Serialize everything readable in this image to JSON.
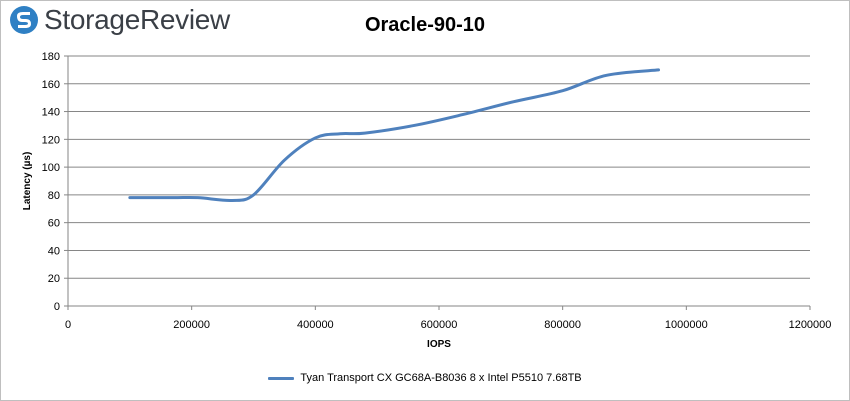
{
  "brand": {
    "name": "StorageReview"
  },
  "colors": {
    "series": "#4f81bd",
    "grid": "#868686",
    "axis": "#868686"
  },
  "chart_data": {
    "type": "line",
    "title": "Oracle-90-10",
    "xlabel": "IOPS",
    "ylabel": "Latency (µs)",
    "xlim": [
      0,
      1200000
    ],
    "ylim": [
      0,
      180
    ],
    "x_ticks": [
      "0",
      "200000",
      "400000",
      "600000",
      "800000",
      "1000000",
      "1200000"
    ],
    "y_ticks": [
      "0",
      "20",
      "40",
      "60",
      "80",
      "100",
      "120",
      "140",
      "160",
      "180"
    ],
    "grid": true,
    "legend_position": "bottom",
    "series": [
      {
        "name": "Tyan Transport CX GC68A-B8036 8 x Intel P5510 7.68TB",
        "x": [
          100000,
          170000,
          210000,
          265000,
          300000,
          350000,
          400000,
          440000,
          480000,
          560000,
          640000,
          720000,
          800000,
          870000,
          955000
        ],
        "y": [
          78,
          78,
          78,
          76,
          80,
          105,
          121,
          124,
          124.5,
          130,
          138,
          147,
          155,
          166,
          170
        ]
      }
    ]
  }
}
